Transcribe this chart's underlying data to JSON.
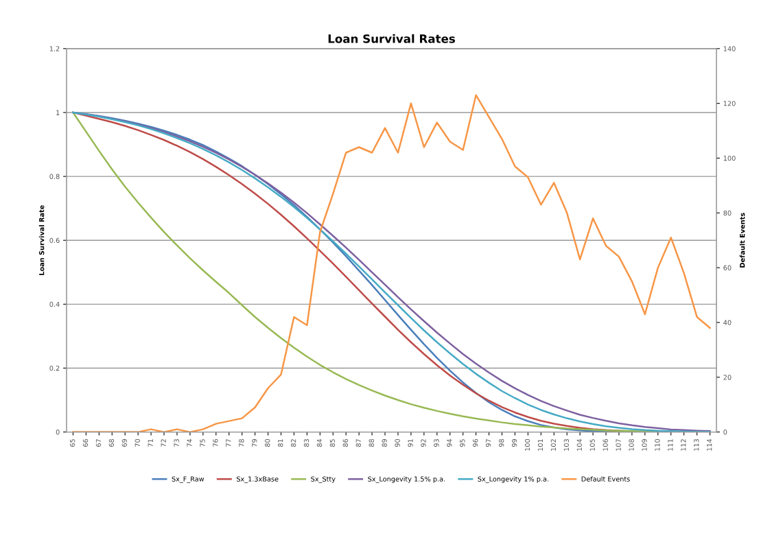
{
  "chart_data": {
    "type": "line",
    "title": "Loan Survival Rates",
    "ylabel": "Loan Survival Rate",
    "y2label": "Default Events",
    "categories": [
      "65",
      "66",
      "67",
      "68",
      "69",
      "70",
      "71",
      "72",
      "73",
      "74",
      "75",
      "76",
      "77",
      "78",
      "79",
      "80",
      "81",
      "82",
      "83",
      "84",
      "85",
      "86",
      "87",
      "88",
      "89",
      "90",
      "91",
      "92",
      "93",
      "94",
      "95",
      "96",
      "97",
      "98",
      "99",
      "100",
      "101",
      "102",
      "103",
      "104",
      "105",
      "106",
      "107",
      "108",
      "109",
      "110",
      "111",
      "112",
      "113",
      "114"
    ],
    "ylim": [
      0,
      1.2
    ],
    "yticks": [
      0,
      0.2,
      0.4,
      0.6,
      0.8,
      1,
      1.2
    ],
    "y2lim": [
      0,
      140
    ],
    "y2ticks": [
      0,
      20,
      40,
      60,
      80,
      100,
      120,
      140
    ],
    "grid": "y",
    "legend": "bottom",
    "marker": "none",
    "line_style": "solid",
    "series": [
      {
        "name": "Sx_F_Raw",
        "color": "#4a7ebb",
        "values": [
          1,
          0.995,
          0.989,
          0.982,
          0.974,
          0.965,
          0.955,
          0.943,
          0.93,
          0.915,
          0.898,
          0.878,
          0.856,
          0.832,
          0.805,
          0.776,
          0.744,
          0.71,
          0.673,
          0.634,
          0.593,
          0.55,
          0.505,
          0.46,
          0.413,
          0.366,
          0.32,
          0.275,
          0.232,
          0.192,
          0.155,
          0.122,
          0.093,
          0.069,
          0.049,
          0.034,
          0.022,
          0.014,
          0.008,
          0.005,
          0.003,
          0.002,
          0.001,
          0.001,
          0,
          0,
          0,
          0,
          0,
          0
        ]
      },
      {
        "name": "Sx_1.3xBase",
        "color": "#be4b48",
        "values": [
          1,
          0.99,
          0.98,
          0.97,
          0.958,
          0.945,
          0.93,
          0.914,
          0.896,
          0.876,
          0.854,
          0.83,
          0.804,
          0.776,
          0.746,
          0.714,
          0.68,
          0.644,
          0.606,
          0.567,
          0.527,
          0.486,
          0.444,
          0.402,
          0.361,
          0.32,
          0.281,
          0.244,
          0.209,
          0.177,
          0.148,
          0.121,
          0.098,
          0.078,
          0.061,
          0.047,
          0.035,
          0.026,
          0.019,
          0.013,
          0.009,
          0.006,
          0.004,
          0.002,
          null,
          null,
          null,
          null,
          null,
          null
        ]
      },
      {
        "name": "Sx_Stty",
        "color": "#98b954",
        "values": [
          1,
          0.94,
          0.88,
          0.822,
          0.768,
          0.718,
          0.671,
          0.626,
          0.584,
          0.544,
          0.506,
          0.47,
          0.435,
          0.397,
          0.36,
          0.326,
          0.294,
          0.264,
          0.236,
          0.21,
          0.187,
          0.166,
          0.147,
          0.13,
          0.114,
          0.1,
          0.087,
          0.076,
          0.066,
          0.057,
          0.049,
          0.042,
          0.036,
          0.03,
          0.025,
          0.021,
          0.017,
          0.014,
          0.011,
          0.009,
          0.007,
          0.005,
          0.004,
          0.003,
          0.002,
          0.002,
          null,
          null,
          null,
          null
        ]
      },
      {
        "name": "Sx_Longevity 1.5% p.a.",
        "color": "#7d60a0",
        "values": [
          1,
          0.994,
          0.988,
          0.98,
          0.972,
          0.962,
          0.951,
          0.939,
          0.925,
          0.91,
          0.893,
          0.874,
          0.853,
          0.83,
          0.805,
          0.778,
          0.749,
          0.718,
          0.685,
          0.65,
          0.614,
          0.577,
          0.539,
          0.5,
          0.461,
          0.422,
          0.384,
          0.347,
          0.311,
          0.277,
          0.244,
          0.214,
          0.186,
          0.16,
          0.137,
          0.116,
          0.097,
          0.081,
          0.067,
          0.054,
          0.044,
          0.035,
          0.027,
          0.021,
          0.016,
          0.012,
          0.008,
          0.006,
          0.004,
          0.003
        ]
      },
      {
        "name": "Sx_Longevity 1% p.a.",
        "color": "#46aac5",
        "values": [
          1,
          0.994,
          0.987,
          0.979,
          0.97,
          0.96,
          0.948,
          0.935,
          0.92,
          0.904,
          0.886,
          0.866,
          0.844,
          0.82,
          0.794,
          0.766,
          0.736,
          0.704,
          0.67,
          0.634,
          0.597,
          0.558,
          0.518,
          0.478,
          0.437,
          0.397,
          0.357,
          0.318,
          0.281,
          0.246,
          0.213,
          0.182,
          0.154,
          0.128,
          0.106,
          0.086,
          0.069,
          0.055,
          0.043,
          0.033,
          0.025,
          0.018,
          0.013,
          0.009,
          0.006,
          0.004,
          0.003,
          0.002,
          0.001,
          0.001
        ]
      },
      {
        "name": "Default Events",
        "color": "#f79646",
        "axis": "y2",
        "values": [
          0,
          0,
          0,
          0,
          0,
          0,
          1,
          0,
          1,
          0,
          1,
          3,
          4,
          5,
          9,
          16,
          21,
          42,
          39,
          73,
          87,
          102,
          104,
          102,
          111,
          102,
          120,
          104,
          113,
          106,
          103,
          123,
          115,
          107,
          97,
          93,
          83,
          91,
          80,
          63,
          78,
          68,
          64,
          55,
          43,
          60,
          71,
          58,
          42,
          38
        ]
      }
    ]
  }
}
